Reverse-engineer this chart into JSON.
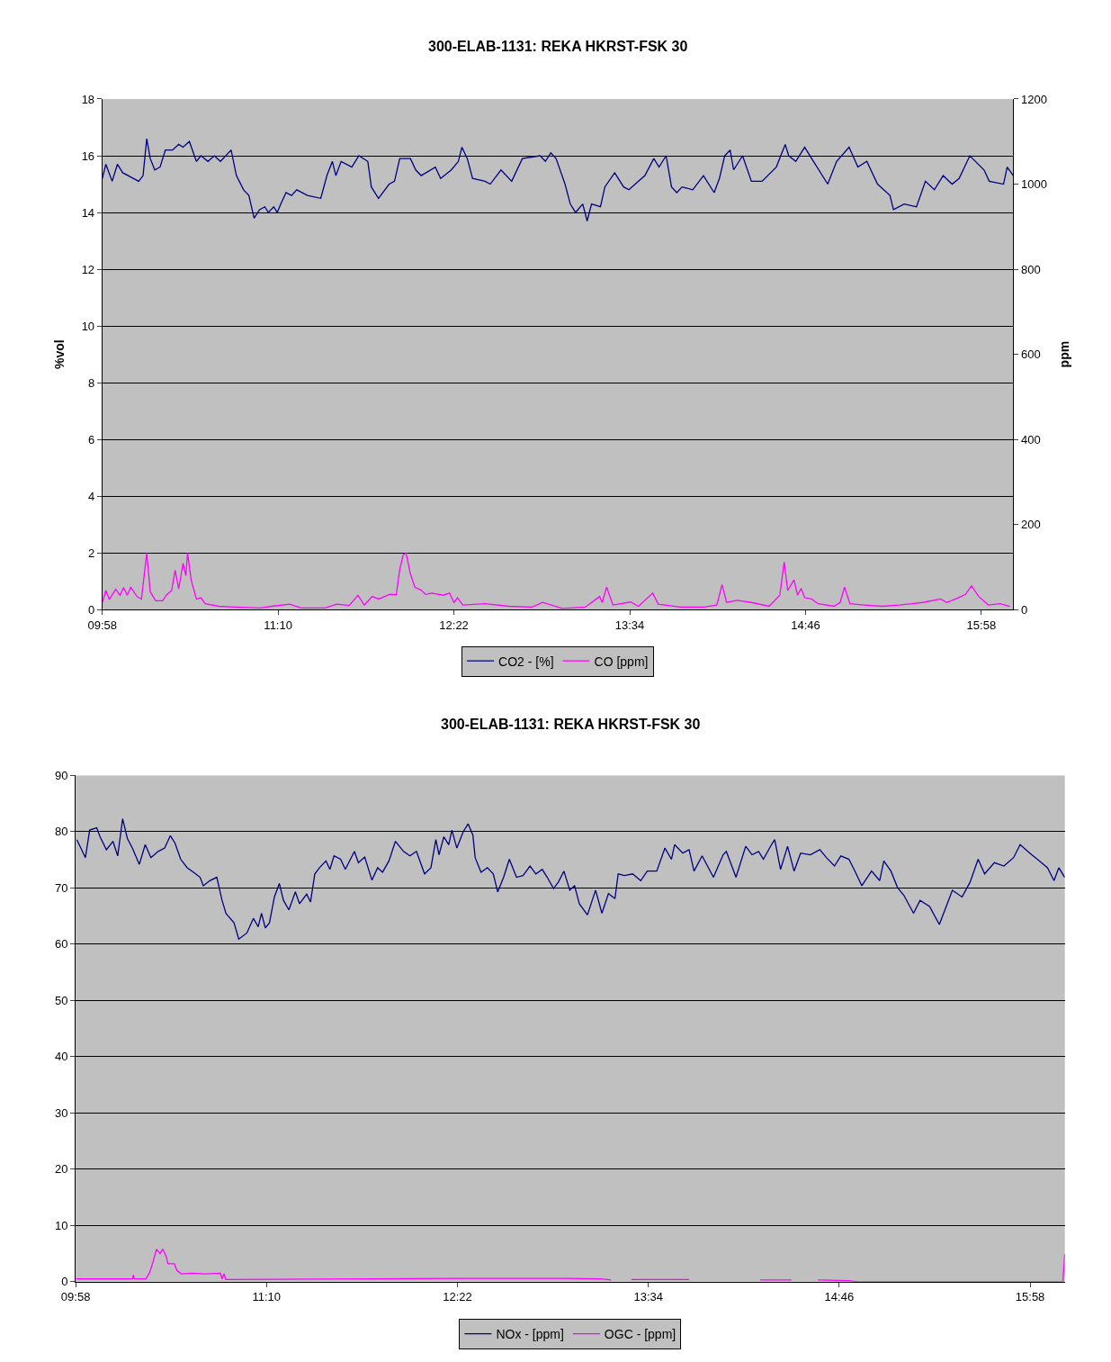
{
  "chart_data": [
    {
      "type": "line",
      "title": "300-ELAB-1131: REKA HKRST-FSK 30",
      "ylabel": "%vol",
      "y2label": "ppm",
      "xlim": [
        9.9667,
        16.185
      ],
      "xticks": [
        {
          "value": 9.9667,
          "label": "09:58"
        },
        {
          "value": 11.1667,
          "label": "11:10"
        },
        {
          "value": 12.3667,
          "label": "12:22"
        },
        {
          "value": 13.5667,
          "label": "13:34"
        },
        {
          "value": 14.7667,
          "label": "14:46"
        },
        {
          "value": 15.9667,
          "label": "15:58"
        }
      ],
      "ylim": [
        0,
        18
      ],
      "yticks": [
        0,
        2,
        4,
        6,
        8,
        10,
        12,
        14,
        16,
        18
      ],
      "y2lim": [
        0,
        1200
      ],
      "y2ticks": [
        0,
        200,
        400,
        600,
        800,
        1000,
        1200
      ],
      "grid": "y",
      "legend": "bottom",
      "marker": "none",
      "line_style": "solid",
      "series": [
        {
          "name": "CO2 - [%]",
          "color": "#000080",
          "x": [
            9.967,
            9.991,
            10.034,
            10.07,
            10.106,
            10.215,
            10.245,
            10.27,
            10.294,
            10.325,
            10.361,
            10.397,
            10.446,
            10.488,
            10.518,
            10.561,
            10.609,
            10.64,
            10.688,
            10.731,
            10.773,
            10.846,
            10.882,
            10.931,
            10.967,
            11.003,
            11.04,
            11.076,
            11.1,
            11.137,
            11.161,
            11.185,
            11.221,
            11.258,
            11.294,
            11.367,
            11.458,
            11.5,
            11.537,
            11.561,
            11.597,
            11.67,
            11.718,
            11.779,
            11.803,
            11.852,
            11.925,
            11.961,
            11.997,
            12.07,
            12.106,
            12.143,
            12.24,
            12.276,
            12.349,
            12.397,
            12.421,
            12.458,
            12.494,
            12.579,
            12.615,
            12.688,
            12.761,
            12.834,
            12.955,
            12.991,
            13.028,
            13.064,
            13.125,
            13.161,
            13.197,
            13.246,
            13.276,
            13.306,
            13.367,
            13.397,
            13.464,
            13.525,
            13.561,
            13.67,
            13.731,
            13.767,
            13.815,
            13.852,
            13.888,
            13.924,
            13.997,
            14.07,
            14.143,
            14.179,
            14.215,
            14.252,
            14.276,
            14.337,
            14.397,
            14.47,
            14.567,
            14.628,
            14.652,
            14.7,
            14.761,
            14.821,
            14.918,
            14.979,
            15.064,
            15.124,
            15.185,
            15.258,
            15.343,
            15.367,
            15.44,
            15.524,
            15.585,
            15.646,
            15.706,
            15.767,
            15.815,
            15.888,
            15.985,
            16.021,
            16.118,
            16.143,
            16.185
          ],
          "values": [
            15.2,
            15.7,
            15.1,
            15.7,
            15.4,
            15.1,
            15.3,
            16.6,
            15.9,
            15.5,
            15.6,
            16.2,
            16.2,
            16.4,
            16.3,
            16.5,
            15.8,
            16.0,
            15.8,
            16.0,
            15.8,
            16.2,
            15.3,
            14.8,
            14.6,
            13.8,
            14.1,
            14.2,
            14.0,
            14.2,
            14.0,
            14.3,
            14.7,
            14.6,
            14.8,
            14.6,
            14.5,
            15.3,
            15.8,
            15.3,
            15.8,
            15.6,
            16.0,
            15.8,
            14.9,
            14.5,
            15.0,
            15.1,
            15.9,
            15.9,
            15.5,
            15.3,
            15.6,
            15.2,
            15.5,
            15.8,
            16.3,
            15.9,
            15.2,
            15.1,
            15.0,
            15.5,
            15.1,
            15.9,
            16.0,
            15.8,
            16.1,
            15.9,
            15.0,
            14.3,
            14.0,
            14.3,
            13.7,
            14.3,
            14.2,
            14.9,
            15.4,
            14.9,
            14.8,
            15.3,
            15.9,
            15.6,
            16.0,
            14.9,
            14.7,
            14.9,
            14.8,
            15.3,
            14.7,
            15.2,
            16.0,
            16.2,
            15.5,
            16.0,
            15.1,
            15.1,
            15.6,
            16.4,
            16.0,
            15.8,
            16.3,
            15.8,
            15.0,
            15.8,
            16.3,
            15.6,
            15.8,
            15.0,
            14.6,
            14.1,
            14.3,
            14.2,
            15.1,
            14.8,
            15.3,
            15.0,
            15.2,
            16.0,
            15.5,
            15.1,
            15.0,
            15.6,
            15.3
          ]
        },
        {
          "name": "CO [ppm]",
          "color": "#ff00ff",
          "axis": "y2",
          "x": [
            9.967,
            9.991,
            10.015,
            10.058,
            10.088,
            10.112,
            10.137,
            10.161,
            10.203,
            10.234,
            10.27,
            10.294,
            10.331,
            10.379,
            10.403,
            10.44,
            10.464,
            10.488,
            10.518,
            10.537,
            10.549,
            10.573,
            10.609,
            10.64,
            10.67,
            10.761,
            10.882,
            11.046,
            11.125,
            11.246,
            11.324,
            11.488,
            11.567,
            11.652,
            11.712,
            11.755,
            11.809,
            11.852,
            11.931,
            11.973,
            11.997,
            12.021,
            12.04,
            12.07,
            12.1,
            12.143,
            12.173,
            12.215,
            12.294,
            12.337,
            12.367,
            12.391,
            12.428,
            12.579,
            12.743,
            12.9,
            12.973,
            13.106,
            13.264,
            13.361,
            13.379,
            13.409,
            13.452,
            13.573,
            13.627,
            13.724,
            13.761,
            13.912,
            14.076,
            14.161,
            14.197,
            14.228,
            14.3,
            14.397,
            14.518,
            14.591,
            14.621,
            14.645,
            14.688,
            14.712,
            14.737,
            14.761,
            14.809,
            14.852,
            14.961,
            15.003,
            15.033,
            15.07,
            15.167,
            15.288,
            15.409,
            15.567,
            15.688,
            15.731,
            15.809,
            15.858,
            15.9,
            15.949,
            16.015,
            16.094,
            16.161
          ],
          "values": [
            17,
            45,
            24,
            48,
            34,
            52,
            34,
            53,
            31,
            25,
            133,
            42,
            21,
            21,
            34,
            45,
            93,
            49,
            109,
            80,
            133,
            70,
            25,
            28,
            14,
            8,
            6,
            4,
            8,
            13,
            4,
            4,
            13,
            10,
            34,
            11,
            31,
            25,
            36,
            35,
            95,
            129,
            133,
            84,
            53,
            46,
            36,
            39,
            34,
            39,
            17,
            28,
            11,
            14,
            8,
            6,
            17,
            3,
            6,
            31,
            17,
            53,
            11,
            18,
            8,
            39,
            13,
            6,
            6,
            11,
            59,
            17,
            22,
            17,
            8,
            34,
            112,
            45,
            70,
            34,
            50,
            28,
            25,
            14,
            8,
            17,
            53,
            14,
            11,
            8,
            11,
            17,
            25,
            17,
            28,
            36,
            56,
            31,
            11,
            14,
            8
          ]
        }
      ]
    },
    {
      "type": "line",
      "title": "300-ELAB-1131: REKA HKRST-FSK 30",
      "xlim": [
        9.9667,
        16.185
      ],
      "xticks": [
        {
          "value": 9.9667,
          "label": "09:58"
        },
        {
          "value": 11.1667,
          "label": "11:10"
        },
        {
          "value": 12.3667,
          "label": "12:22"
        },
        {
          "value": 13.5667,
          "label": "13:34"
        },
        {
          "value": 14.7667,
          "label": "14:46"
        },
        {
          "value": 15.9667,
          "label": "15:58"
        }
      ],
      "ylim": [
        0,
        90
      ],
      "yticks": [
        0,
        10,
        20,
        30,
        40,
        50,
        60,
        70,
        80,
        90
      ],
      "grid": "y",
      "legend": "bottom",
      "marker": "none",
      "line_style": "solid",
      "series": [
        {
          "name": "NOx - [ppm]",
          "color": "#000080",
          "x": [
            9.974,
            10.028,
            10.055,
            10.099,
            10.12,
            10.16,
            10.201,
            10.231,
            10.262,
            10.292,
            10.323,
            10.367,
            10.404,
            10.44,
            10.485,
            10.526,
            10.562,
            10.591,
            10.627,
            10.668,
            10.708,
            10.749,
            10.769,
            10.81,
            10.854,
            10.887,
            10.911,
            10.962,
            10.992,
            11.043,
            11.084,
            11.114,
            11.135,
            11.159,
            11.185,
            11.216,
            11.247,
            11.273,
            11.307,
            11.348,
            11.374,
            11.419,
            11.443,
            11.47,
            11.5,
            11.54,
            11.565,
            11.591,
            11.632,
            11.662,
            11.719,
            11.744,
            11.784,
            11.829,
            11.865,
            11.896,
            11.936,
            11.977,
            12.028,
            12.068,
            12.109,
            12.16,
            12.2,
            12.231,
            12.251,
            12.281,
            12.312,
            12.332,
            12.363,
            12.403,
            12.434,
            12.464,
            12.478,
            12.515,
            12.555,
            12.592,
            12.62,
            12.657,
            12.693,
            12.738,
            12.779,
            12.823,
            12.86,
            12.9,
            12.931,
            12.971,
            13.002,
            13.036,
            13.073,
            13.103,
            13.133,
            13.184,
            13.235,
            13.275,
            13.316,
            13.357,
            13.377,
            13.418,
            13.468,
            13.519,
            13.56,
            13.62,
            13.671,
            13.712,
            13.732,
            13.783,
            13.823,
            13.854,
            13.905,
            13.976,
            14.037,
            14.057,
            14.118,
            14.179,
            14.219,
            14.26,
            14.29,
            14.341,
            14.361,
            14.398,
            14.442,
            14.483,
            14.524,
            14.585,
            14.645,
            14.686,
            14.737,
            14.777,
            14.828,
            14.869,
            14.909,
            14.97,
            15.021,
            15.047,
            15.092,
            15.133,
            15.173,
            15.234,
            15.275,
            15.335,
            15.396,
            15.427,
            15.478,
            15.539,
            15.589,
            15.64,
            15.681,
            15.742,
            15.802,
            15.863,
            15.904,
            15.965,
            16.026,
            16.076,
            16.117,
            16.147,
            16.184
          ],
          "values": [
            78.6,
            75.4,
            80.3,
            80.7,
            79.1,
            76.8,
            78.3,
            75.7,
            82.3,
            78.8,
            77.1,
            74.2,
            77.7,
            75.4,
            76.5,
            77.1,
            79.3,
            78.0,
            75.1,
            73.6,
            72.8,
            71.9,
            70.4,
            71.3,
            71.9,
            67.8,
            65.5,
            63.8,
            60.9,
            62.0,
            64.6,
            63.1,
            65.5,
            62.9,
            63.8,
            68.4,
            70.8,
            67.8,
            66.1,
            69.3,
            67.2,
            68.9,
            67.5,
            72.5,
            73.6,
            74.8,
            73.3,
            75.7,
            75.1,
            73.3,
            76.5,
            74.5,
            75.5,
            71.4,
            73.6,
            72.8,
            74.8,
            78.3,
            76.5,
            75.7,
            76.5,
            72.5,
            73.6,
            78.6,
            75.9,
            79.1,
            77.7,
            80.3,
            77.1,
            80.0,
            81.4,
            79.4,
            75.4,
            72.8,
            73.6,
            72.5,
            69.3,
            71.9,
            75.1,
            71.9,
            72.2,
            73.9,
            72.5,
            73.3,
            71.9,
            69.9,
            71.1,
            73.0,
            69.6,
            70.4,
            67.2,
            65.2,
            69.6,
            65.5,
            69.0,
            68.1,
            72.5,
            72.2,
            72.5,
            71.3,
            73.0,
            73.0,
            77.1,
            75.1,
            77.7,
            76.2,
            76.8,
            73.0,
            75.7,
            71.9,
            75.9,
            76.5,
            71.9,
            77.4,
            75.9,
            76.5,
            75.1,
            77.7,
            78.6,
            73.3,
            77.4,
            73.0,
            76.2,
            75.9,
            76.8,
            75.4,
            73.9,
            75.7,
            75.1,
            72.8,
            70.4,
            73.0,
            71.3,
            74.8,
            73.0,
            70.1,
            68.7,
            65.5,
            67.8,
            66.7,
            63.5,
            65.8,
            69.6,
            68.4,
            71.0,
            75.1,
            72.5,
            74.5,
            73.9,
            75.4,
            77.7,
            76.2,
            74.8,
            73.6,
            71.3,
            73.6,
            71.9
          ]
        },
        {
          "name": "OGC - [ppm]",
          "color": "#ff00ff",
          "x": [
            9.967,
            10.324,
            10.33,
            10.335,
            10.408,
            10.43,
            10.453,
            10.475,
            10.497,
            10.514,
            10.536,
            10.547,
            10.587,
            10.603,
            10.631,
            10.698,
            10.782,
            10.877,
            10.888,
            10.899,
            10.91,
            11.814,
            12.373,
            13.042,
            13.265,
            13.332,
            13.377,
            13.46,
            13.824,
            13.88,
            14.27,
            14.326,
            14.466,
            14.482,
            14.633,
            14.828,
            14.884,
            16.173,
            16.184
          ],
          "values": [
            0.5,
            0.5,
            1.2,
            0.5,
            0.5,
            1.5,
            3.5,
            5.8,
            5.0,
            5.8,
            4.5,
            3.2,
            3.2,
            2.0,
            1.4,
            1.5,
            1.4,
            1.5,
            0.5,
            1.4,
            0.4,
            0.5,
            0.6,
            0.6,
            0.5,
            0.3,
            null,
            0.4,
            0.4,
            null,
            0.3,
            0.3,
            0.3,
            null,
            0.3,
            0.2,
            0.0,
            0.0,
            4.9
          ]
        }
      ]
    }
  ]
}
